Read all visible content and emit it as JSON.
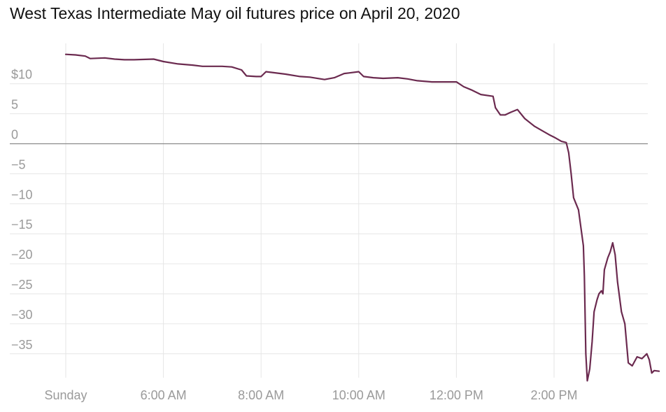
{
  "title": "West Texas Intermediate May oil futures price on April 20, 2020",
  "colors": {
    "line": "#6b2a4f",
    "grid": "#e6e6e6",
    "zero_line": "#8a8a8a",
    "tick_text": "#9a9a9a"
  },
  "chart_data": {
    "type": "line",
    "title": "West Texas Intermediate May oil futures price on April 20, 2020",
    "xlabel": "",
    "ylabel": "",
    "y_ticks": [
      10,
      5,
      0,
      -5,
      -10,
      -15,
      -20,
      -25,
      -30,
      -35
    ],
    "y_tick_labels": [
      "$10",
      "5",
      "0",
      "−5",
      "−10",
      "−15",
      "−20",
      "−25",
      "−30",
      "−35"
    ],
    "ylim": [
      -40,
      15
    ],
    "x_ticks": [
      0,
      2,
      4,
      6,
      8,
      10
    ],
    "x_tick_labels": [
      "Sunday",
      "6:00 AM",
      "8:00 AM",
      "10:00 AM",
      "12:00 PM",
      "2:00 PM"
    ],
    "xlim": [
      -0.3,
      11.85
    ],
    "grid": true,
    "legend": "none",
    "series": [
      {
        "values": [
          [
            0.0,
            14.9
          ],
          [
            0.2,
            14.8
          ],
          [
            0.4,
            14.6
          ],
          [
            0.5,
            14.2
          ],
          [
            0.8,
            14.3
          ],
          [
            1.0,
            14.1
          ],
          [
            1.2,
            14.0
          ],
          [
            1.4,
            14.0
          ],
          [
            1.8,
            14.1
          ],
          [
            2.0,
            13.7
          ],
          [
            2.3,
            13.3
          ],
          [
            2.6,
            13.1
          ],
          [
            2.8,
            12.9
          ],
          [
            3.0,
            12.9
          ],
          [
            3.2,
            12.9
          ],
          [
            3.4,
            12.8
          ],
          [
            3.6,
            12.3
          ],
          [
            3.7,
            11.3
          ],
          [
            3.9,
            11.2
          ],
          [
            4.0,
            11.2
          ],
          [
            4.1,
            12.0
          ],
          [
            4.2,
            11.9
          ],
          [
            4.5,
            11.6
          ],
          [
            4.8,
            11.2
          ],
          [
            5.0,
            11.1
          ],
          [
            5.3,
            10.7
          ],
          [
            5.5,
            11.0
          ],
          [
            5.7,
            11.7
          ],
          [
            5.8,
            11.8
          ],
          [
            6.0,
            12.0
          ],
          [
            6.1,
            11.2
          ],
          [
            6.3,
            11.0
          ],
          [
            6.5,
            10.9
          ],
          [
            6.8,
            11.0
          ],
          [
            7.0,
            10.8
          ],
          [
            7.2,
            10.5
          ],
          [
            7.5,
            10.3
          ],
          [
            7.8,
            10.3
          ],
          [
            8.0,
            10.3
          ],
          [
            8.15,
            9.5
          ],
          [
            8.3,
            9.0
          ],
          [
            8.5,
            8.2
          ],
          [
            8.75,
            7.9
          ],
          [
            8.8,
            6.0
          ],
          [
            8.9,
            4.8
          ],
          [
            9.0,
            4.8
          ],
          [
            9.1,
            5.2
          ],
          [
            9.25,
            5.7
          ],
          [
            9.4,
            4.2
          ],
          [
            9.6,
            2.9
          ],
          [
            9.75,
            2.2
          ],
          [
            9.9,
            1.5
          ],
          [
            10.0,
            1.1
          ],
          [
            10.15,
            0.4
          ],
          [
            10.25,
            0.2
          ],
          [
            10.3,
            -1.5
          ],
          [
            10.35,
            -5.0
          ],
          [
            10.4,
            -9.0
          ],
          [
            10.45,
            -10.0
          ],
          [
            10.5,
            -11.0
          ],
          [
            10.55,
            -14.0
          ],
          [
            10.6,
            -17.0
          ],
          [
            10.62,
            -22.0
          ],
          [
            10.65,
            -35.0
          ],
          [
            10.68,
            -39.5
          ],
          [
            10.73,
            -37.5
          ],
          [
            10.78,
            -33.0
          ],
          [
            10.82,
            -28.0
          ],
          [
            10.88,
            -26.0
          ],
          [
            10.92,
            -25.0
          ],
          [
            10.97,
            -24.5
          ],
          [
            11.0,
            -25.0
          ],
          [
            11.03,
            -21.0
          ],
          [
            11.1,
            -19.0
          ],
          [
            11.15,
            -18.0
          ],
          [
            11.2,
            -16.5
          ],
          [
            11.25,
            -18.5
          ],
          [
            11.3,
            -23.0
          ],
          [
            11.38,
            -28.0
          ],
          [
            11.45,
            -30.0
          ],
          [
            11.52,
            -36.5
          ],
          [
            11.6,
            -37.0
          ],
          [
            11.7,
            -35.5
          ],
          [
            11.8,
            -35.8
          ],
          [
            11.9,
            -35.0
          ],
          [
            11.95,
            -36.0
          ],
          [
            12.0,
            -38.2
          ],
          [
            12.05,
            -37.8
          ],
          [
            12.15,
            -37.9
          ]
        ]
      }
    ]
  }
}
